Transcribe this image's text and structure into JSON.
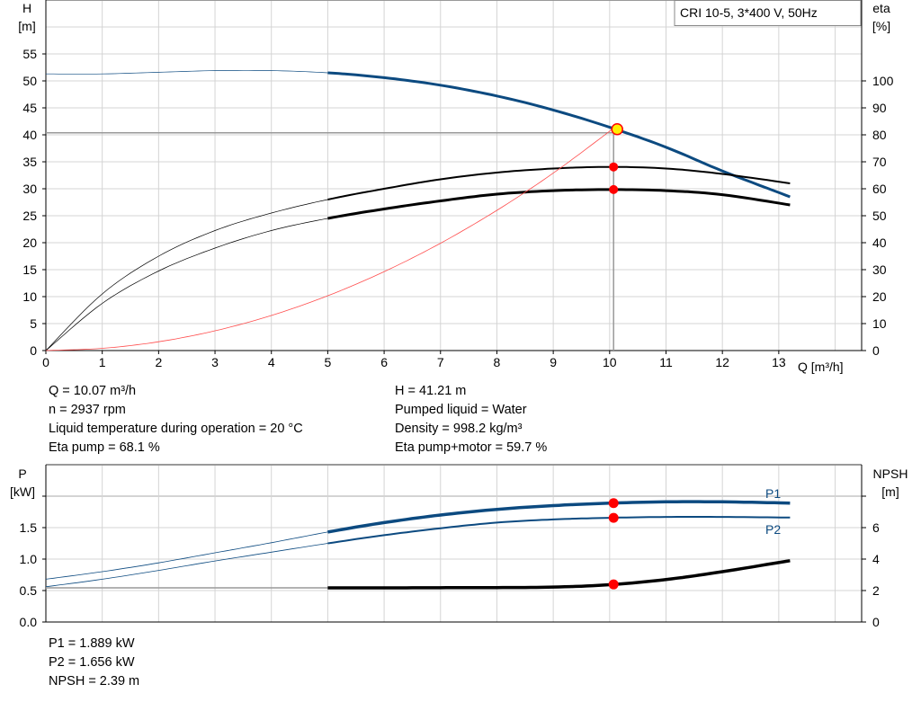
{
  "title": "CRI 10-5, 3*400 V, 50Hz",
  "colors": {
    "head": "#0c4a80",
    "eta": "#000000",
    "system": "#ff4d4d",
    "point": "#ff0000",
    "duty_fill": "#ffee00",
    "grid": "#d4d4d4"
  },
  "chart_data": [
    {
      "type": "line",
      "title": "CRI 10-5, 3*400 V, 50Hz",
      "xlabel": "Q [m³/h]",
      "ylabel": "H",
      "ylabel_unit": "[m]",
      "y2label": "eta",
      "y2label_unit": "[%]",
      "xlim": [
        0,
        14.47
      ],
      "ylim": [
        0,
        65
      ],
      "y2lim": [
        0,
        100
      ],
      "x_ticks": [
        "0",
        "1",
        "2",
        "3",
        "4",
        "5",
        "6",
        "7",
        "8",
        "9",
        "10",
        "11",
        "12",
        "13"
      ],
      "y_ticks": [
        "0",
        "5",
        "10",
        "15",
        "20",
        "25",
        "30",
        "35",
        "40",
        "45",
        "50",
        "55"
      ],
      "y2_ticks": [
        "0",
        "10",
        "20",
        "30",
        "40",
        "50",
        "60",
        "70",
        "80",
        "90",
        "100"
      ],
      "grid": true,
      "series": [
        {
          "key": "H",
          "axis": "left",
          "x": [
            0,
            1,
            2,
            3,
            4,
            5,
            6,
            7,
            8,
            9,
            10,
            11,
            12,
            13.2
          ],
          "y": [
            51.3,
            51.3,
            51.6,
            51.9,
            51.9,
            51.5,
            50.6,
            49.2,
            47.2,
            44.6,
            41.4,
            37.7,
            33.3,
            28.5
          ]
        },
        {
          "key": "eta_pump",
          "axis": "right",
          "x": [
            0,
            1,
            2,
            3,
            4,
            5,
            6,
            7,
            8,
            9,
            10,
            11,
            12,
            13.2
          ],
          "y": [
            0,
            21,
            35,
            44.5,
            51,
            56,
            60,
            63.5,
            66,
            67.5,
            68.1,
            67.5,
            65.5,
            62
          ]
        },
        {
          "key": "eta_total",
          "axis": "right",
          "x": [
            0,
            1,
            2,
            3,
            4,
            5,
            6,
            7,
            8,
            9,
            10,
            11,
            12,
            13.2
          ],
          "y": [
            0,
            17.5,
            29.5,
            38,
            44.5,
            49,
            52.5,
            55.5,
            58,
            59.3,
            59.7,
            59.3,
            57.8,
            54
          ]
        },
        {
          "key": "system",
          "axis": "left",
          "x": [
            0,
            1,
            2,
            3,
            4,
            5,
            6,
            7,
            8,
            9,
            10.07
          ],
          "y": [
            0,
            0.41,
            1.63,
            3.66,
            6.5,
            10.16,
            14.63,
            19.9,
            26,
            32.9,
            41.21
          ]
        }
      ],
      "duty_point": {
        "Q": 10.07,
        "H": 41.21,
        "eta_pump": 68.1,
        "eta_total": 59.7
      }
    },
    {
      "type": "line",
      "ylabel": "P",
      "ylabel_unit": "[kW]",
      "y2label": "NPSH",
      "y2label_unit": "[m]",
      "xlim": [
        0,
        14.47
      ],
      "ylim": [
        0,
        2.5
      ],
      "y2lim": [
        0,
        10
      ],
      "y_ticks": [
        "0.0",
        "0.5",
        "1.0",
        "1.5"
      ],
      "y2_ticks": [
        "0",
        "2",
        "4",
        "6"
      ],
      "grid": true,
      "series": [
        {
          "key": "P1",
          "name": "P1",
          "axis": "left",
          "x": [
            0,
            1,
            2,
            3,
            4,
            5,
            6,
            7,
            8,
            9,
            10,
            11,
            12,
            13.2
          ],
          "y": [
            0.68,
            0.8,
            0.94,
            1.1,
            1.26,
            1.43,
            1.58,
            1.7,
            1.79,
            1.85,
            1.889,
            1.91,
            1.91,
            1.89
          ]
        },
        {
          "key": "P2",
          "name": "P2",
          "axis": "left",
          "x": [
            0,
            1,
            2,
            3,
            4,
            5,
            6,
            7,
            8,
            9,
            10,
            11,
            12,
            13.2
          ],
          "y": [
            0.56,
            0.68,
            0.82,
            0.97,
            1.11,
            1.25,
            1.38,
            1.49,
            1.58,
            1.63,
            1.656,
            1.67,
            1.67,
            1.66
          ]
        },
        {
          "key": "NPSH",
          "axis": "right",
          "x": [
            0,
            1,
            2,
            3,
            4,
            5,
            6,
            7,
            8,
            9,
            10,
            11,
            12,
            13.2
          ],
          "y": [
            2.17,
            2.17,
            2.17,
            2.17,
            2.17,
            2.17,
            2.17,
            2.18,
            2.19,
            2.22,
            2.37,
            2.7,
            3.2,
            3.9
          ]
        }
      ],
      "duty_point": {
        "Q": 10.07,
        "P1": 1.889,
        "P2": 1.656,
        "NPSH": 2.39
      }
    }
  ],
  "info_top_left": [
    "Q = 10.07 m³/h",
    "n = 2937 rpm",
    "Liquid temperature during operation = 20 °C",
    "Eta pump = 68.1 %"
  ],
  "info_top_right": [
    "H = 41.21 m",
    "Pumped liquid = Water",
    "Density = 998.2 kg/m³",
    "Eta pump+motor = 59.7 %"
  ],
  "info_bottom": [
    "P1 = 1.889 kW",
    "P2 = 1.656 kW",
    "NPSH = 2.39 m"
  ]
}
